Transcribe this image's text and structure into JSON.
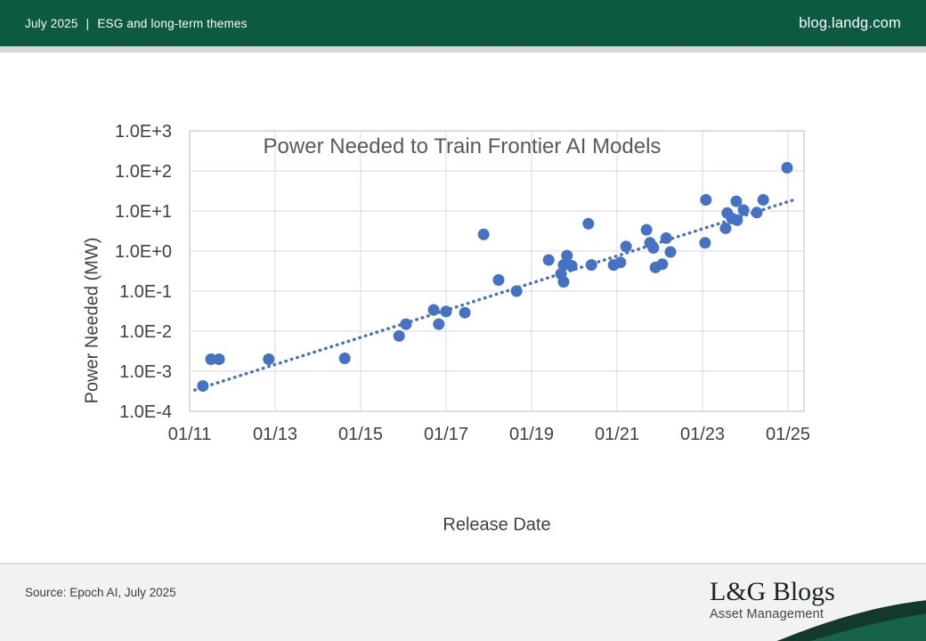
{
  "header": {
    "date_label": "July 2025",
    "divider": "|",
    "theme_label": "ESG and long-term themes",
    "site_label": "blog.landg.com"
  },
  "chart_data": {
    "type": "scatter",
    "title": "Power Needed to Train Frontier AI Models",
    "xlabel": "Release Date",
    "ylabel": "Power Needed (MW)",
    "legend": "none",
    "grid": true,
    "point_color": "#4472c4",
    "x_axis": {
      "ticks": [
        "01/11",
        "01/13",
        "01/15",
        "01/17",
        "01/19",
        "01/21",
        "01/23",
        "01/25"
      ],
      "tick_years": [
        2011,
        2013,
        2015,
        2017,
        2019,
        2021,
        2023,
        2025
      ],
      "range_years": [
        2011,
        2025.375
      ]
    },
    "y_axis": {
      "scale": "log",
      "ticks": [
        "1.0E+3",
        "1.0E+2",
        "1.0E+1",
        "1.0E+0",
        "1.0E-1",
        "1.0E-2",
        "1.0E-3",
        "1.0E-4"
      ],
      "tick_values": [
        1000,
        100,
        10,
        1,
        0.1,
        0.01,
        0.001,
        0.0001
      ],
      "range": [
        0.0001,
        1000
      ]
    },
    "points_year_mw": [
      [
        2011.31,
        0.00043
      ],
      [
        2011.5,
        0.002
      ],
      [
        2011.69,
        0.002
      ],
      [
        2012.85,
        0.002
      ],
      [
        2014.63,
        0.0021
      ],
      [
        2015.9,
        0.0076
      ],
      [
        2016.06,
        0.015
      ],
      [
        2016.71,
        0.034
      ],
      [
        2016.83,
        0.015
      ],
      [
        2017.0,
        0.031
      ],
      [
        2017.44,
        0.029
      ],
      [
        2017.88,
        2.6
      ],
      [
        2018.23,
        0.19
      ],
      [
        2018.65,
        0.1
      ],
      [
        2019.4,
        0.6
      ],
      [
        2019.69,
        0.27
      ],
      [
        2019.75,
        0.17
      ],
      [
        2019.75,
        0.45
      ],
      [
        2019.83,
        0.77
      ],
      [
        2019.94,
        0.43
      ],
      [
        2020.33,
        4.8
      ],
      [
        2020.4,
        0.45
      ],
      [
        2020.92,
        0.45
      ],
      [
        2021.08,
        0.52
      ],
      [
        2021.21,
        1.3
      ],
      [
        2021.69,
        3.4
      ],
      [
        2021.77,
        1.6
      ],
      [
        2021.85,
        1.2
      ],
      [
        2021.9,
        0.39
      ],
      [
        2022.06,
        0.47
      ],
      [
        2022.15,
        2.1
      ],
      [
        2022.25,
        0.95
      ],
      [
        2023.06,
        1.6
      ],
      [
        2023.08,
        19.0
      ],
      [
        2023.54,
        3.7
      ],
      [
        2023.58,
        8.9
      ],
      [
        2023.69,
        6.5
      ],
      [
        2023.79,
        17.5
      ],
      [
        2023.81,
        5.9
      ],
      [
        2023.96,
        10.5
      ],
      [
        2024.27,
        9.1
      ],
      [
        2024.42,
        19.0
      ],
      [
        2024.98,
        120.0
      ]
    ],
    "trendline": {
      "style": "dotted",
      "color": "#4472c4",
      "x_years": [
        2011.12,
        2025.17
      ],
      "y_mw": [
        0.00034,
        19.5
      ]
    }
  },
  "footer": {
    "source": "Source: Epoch AI, July 2025",
    "logo_title": "L&G Blogs",
    "logo_subtitle": "Asset Management"
  },
  "colors": {
    "header_green": "#0b5a41",
    "wave_dark_green": "#12392c",
    "wave_green": "#17624a",
    "footer_bg": "#f2f2f2",
    "point_blue": "#4472c4",
    "grid_gray": "#d9d9d9",
    "title_gray": "#595959",
    "axis_text_gray": "#404040"
  }
}
